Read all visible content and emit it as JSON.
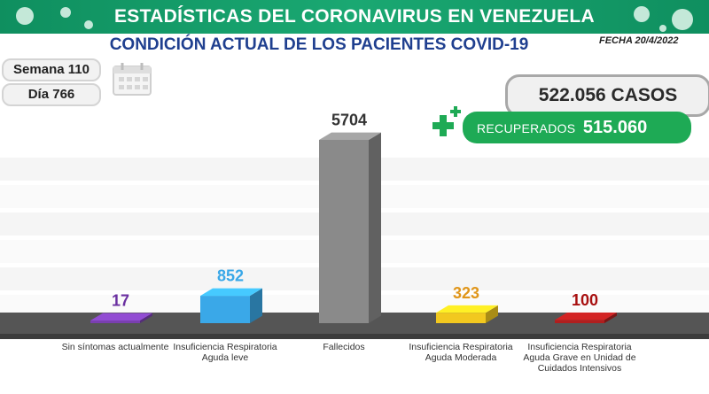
{
  "header": {
    "title": "ESTADÍSTICAS DEL CORONAVIRUS EN VENEZUELA",
    "subtitle": "CONDICIÓN ACTUAL DE LOS PACIENTES COVID-19",
    "date": "FECHA 20/4/2022"
  },
  "info": {
    "week": "Semana 110",
    "day": "Día 766",
    "cases": "522.056 CASOS",
    "recovered_label": "RECUPERADOS",
    "recovered_value": "515.060"
  },
  "icons": {
    "calendar": "calendar-icon",
    "plus": "plus-icon",
    "virus": "virus-icon"
  },
  "colors": {
    "banner": "#1aa872",
    "subtitle": "#1f3f8f",
    "recovered": "#1eaa55"
  },
  "chart_data": {
    "type": "bar",
    "title": "",
    "xlabel": "",
    "ylabel": "",
    "ylim": [
      0,
      6500
    ],
    "grid": true,
    "categories": [
      "Sin síntomas actualmente",
      "Insuficiencia Respiratoria Aguda leve",
      "Fallecidos",
      "Insuficiencia Respiratoria Aguda Moderada",
      "Insuficiencia Respiratoria Aguda Grave en Unidad de Cuidados Intensivos"
    ],
    "values": [
      17,
      852,
      5704,
      323,
      100
    ],
    "value_labels": [
      "17",
      "852",
      "5704",
      "323",
      "100"
    ],
    "bar_colors": [
      "#7a3fb0",
      "#3aa8e8",
      "#8a8a8a",
      "#f2c81f",
      "#b01e1e"
    ],
    "label_colors": [
      "#6a2fa0",
      "#3aa8e8",
      "#333333",
      "#e0961a",
      "#a81010"
    ]
  }
}
